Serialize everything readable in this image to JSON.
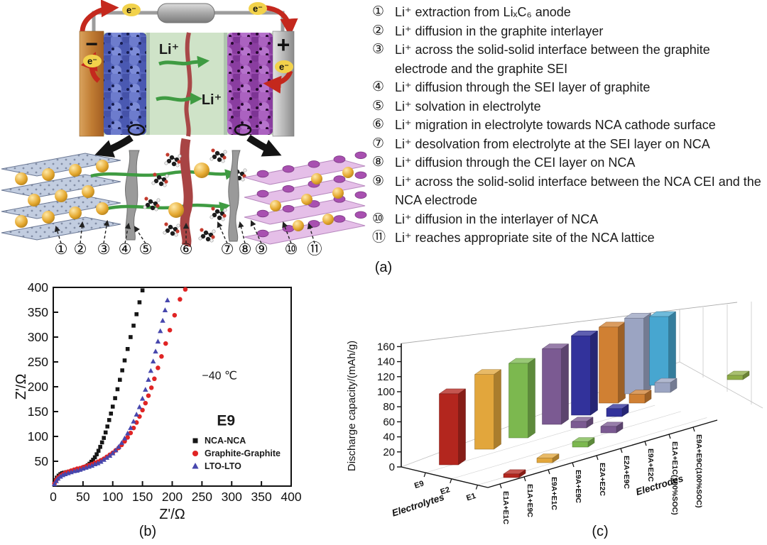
{
  "panel_a": {
    "caption": "(a)",
    "labels": {
      "electron": "e⁻",
      "minus": "−",
      "plus": "+",
      "li_ion_upper": "Li⁺",
      "li_ion_lower": "Li⁺"
    },
    "step_markers": [
      "①",
      "②",
      "③",
      "④",
      "⑤",
      "⑥",
      "⑦",
      "⑧",
      "⑨",
      "⑩",
      "⑪"
    ],
    "steps": [
      {
        "marker": "①",
        "text": "Li⁺ extraction from LiₓC₆ anode"
      },
      {
        "marker": "②",
        "text": "Li⁺ diffusion in the graphite interlayer"
      },
      {
        "marker": "③",
        "text": "Li⁺ across the solid-solid interface between the graphite electrode and the graphite SEI"
      },
      {
        "marker": "④",
        "text": "Li⁺ diffusion through the SEI layer of graphite"
      },
      {
        "marker": "⑤",
        "text": "Li⁺ solvation in electrolyte"
      },
      {
        "marker": "⑥",
        "text": "Li⁺ migration in electrolyte towards NCA cathode surface"
      },
      {
        "marker": "⑦",
        "text": "Li⁺ desolvation from electrolyte at the SEI layer on NCA"
      },
      {
        "marker": "⑧",
        "text": "Li⁺ diffusion through the CEI layer on NCA"
      },
      {
        "marker": "⑨",
        "text": "Li⁺ across the solid-solid interface between the NCA CEI and the NCA electrode"
      },
      {
        "marker": "⑩",
        "text": "Li⁺ diffusion in the interlayer of NCA"
      },
      {
        "marker": "⑪",
        "text": "Li⁺ reaches appropriate site of the NCA lattice"
      }
    ]
  },
  "panel_b": {
    "caption": "(b)"
  },
  "panel_c": {
    "caption": "(c)"
  },
  "chart_data": [
    {
      "id": "panel_b",
      "type": "scatter",
      "xlabel": "Z'/Ω",
      "ylabel": "Z'/Ω",
      "xlim": [
        0,
        400
      ],
      "ylim": [
        0,
        400
      ],
      "xticks": [
        0,
        50,
        100,
        150,
        200,
        250,
        300,
        350,
        400
      ],
      "yticks": [
        50,
        100,
        150,
        200,
        250,
        300,
        350,
        400
      ],
      "grid": false,
      "legend_position": "inside-bottom-right",
      "annotations": [
        {
          "text": "−40 ℃",
          "x": 250,
          "y": 215
        },
        {
          "text": "E9",
          "x": 275,
          "y": 122
        }
      ],
      "series": [
        {
          "name": "NCA-NCA",
          "marker": "square",
          "color": "#161616",
          "points": [
            [
              2,
              6
            ],
            [
              4,
              12
            ],
            [
              6,
              17
            ],
            [
              9,
              21
            ],
            [
              12,
              24
            ],
            [
              15,
              26
            ],
            [
              18,
              27
            ],
            [
              22,
              28
            ],
            [
              26,
              29
            ],
            [
              30,
              30
            ],
            [
              34,
              31
            ],
            [
              38,
              32
            ],
            [
              42,
              33
            ],
            [
              46,
              35
            ],
            [
              50,
              37
            ],
            [
              54,
              39
            ],
            [
              58,
              42
            ],
            [
              61,
              45
            ],
            [
              64,
              49
            ],
            [
              67,
              53
            ],
            [
              70,
              58
            ],
            [
              73,
              64
            ],
            [
              76,
              71
            ],
            [
              79,
              79
            ],
            [
              82,
              88
            ],
            [
              85,
              97
            ],
            [
              88,
              108
            ],
            [
              91,
              120
            ],
            [
              94,
              133
            ],
            [
              97,
              146
            ],
            [
              100,
              160
            ],
            [
              104,
              177
            ],
            [
              108,
              195
            ],
            [
              112,
              214
            ],
            [
              116,
              233
            ],
            [
              120,
              253
            ],
            [
              125,
              276
            ],
            [
              130,
              300
            ],
            [
              135,
              323
            ],
            [
              140,
              346
            ],
            [
              145,
              370
            ],
            [
              150,
              394
            ]
          ]
        },
        {
          "name": "Graphite-Graphite",
          "marker": "circle",
          "color": "#e02424",
          "points": [
            [
              2,
              5
            ],
            [
              5,
              12
            ],
            [
              8,
              17
            ],
            [
              12,
              21
            ],
            [
              16,
              24
            ],
            [
              20,
              27
            ],
            [
              25,
              29
            ],
            [
              30,
              31
            ],
            [
              35,
              33
            ],
            [
              40,
              35
            ],
            [
              45,
              36
            ],
            [
              50,
              38
            ],
            [
              55,
              40
            ],
            [
              60,
              42
            ],
            [
              65,
              44
            ],
            [
              70,
              47
            ],
            [
              75,
              49
            ],
            [
              80,
              52
            ],
            [
              85,
              55
            ],
            [
              90,
              59
            ],
            [
              95,
              63
            ],
            [
              100,
              67
            ],
            [
              105,
              72
            ],
            [
              110,
              77
            ],
            [
              115,
              83
            ],
            [
              120,
              90
            ],
            [
              125,
              98
            ],
            [
              130,
              107
            ],
            [
              135,
              117
            ],
            [
              140,
              128
            ],
            [
              145,
              140
            ],
            [
              150,
              153
            ],
            [
              155,
              167
            ],
            [
              160,
              182
            ],
            [
              165,
              198
            ],
            [
              170,
              216
            ],
            [
              176,
              238
            ],
            [
              182,
              261
            ],
            [
              189,
              287
            ],
            [
              196,
              314
            ],
            [
              204,
              344
            ],
            [
              213,
              376
            ],
            [
              222,
              396
            ]
          ]
        },
        {
          "name": "LTO-LTO",
          "marker": "triangle",
          "color": "#4747ad",
          "points": [
            [
              2,
              4
            ],
            [
              5,
              10
            ],
            [
              8,
              15
            ],
            [
              12,
              19
            ],
            [
              16,
              22
            ],
            [
              20,
              24
            ],
            [
              25,
              26
            ],
            [
              30,
              28
            ],
            [
              35,
              30
            ],
            [
              40,
              31
            ],
            [
              45,
              33
            ],
            [
              50,
              35
            ],
            [
              55,
              37
            ],
            [
              60,
              39
            ],
            [
              65,
              41
            ],
            [
              70,
              44
            ],
            [
              75,
              46
            ],
            [
              80,
              49
            ],
            [
              85,
              53
            ],
            [
              90,
              57
            ],
            [
              95,
              61
            ],
            [
              100,
              66
            ],
            [
              105,
              72
            ],
            [
              110,
              79
            ],
            [
              115,
              87
            ],
            [
              120,
              96
            ],
            [
              125,
              106
            ],
            [
              130,
              117
            ],
            [
              135,
              130
            ],
            [
              140,
              144
            ],
            [
              145,
              159
            ],
            [
              150,
              176
            ],
            [
              155,
              194
            ],
            [
              160,
              214
            ],
            [
              164,
              232
            ],
            [
              168,
              251
            ],
            [
              172,
              271
            ],
            [
              176,
              291
            ],
            [
              180,
              312
            ],
            [
              184,
              333
            ],
            [
              188,
              354
            ],
            [
              192,
              374
            ]
          ]
        }
      ]
    },
    {
      "id": "panel_c",
      "type": "bar3d",
      "ylabel": "Discharge capacity/(mAh/g)",
      "ylim": [
        0,
        160
      ],
      "yticks": [
        0,
        20,
        40,
        60,
        80,
        100,
        120,
        140,
        160
      ],
      "xlabel": "Electrodes",
      "depth_label": "Electrolytes",
      "electrolytes": [
        "E9",
        "E2",
        "E1"
      ],
      "electrodes": [
        "E1A+E1C",
        "E1A+E9C",
        "E9A+E1C",
        "E9A+E9C",
        "E2A+E2C",
        "E2A+E9C",
        "E9A+E2C",
        "E1A+E1C(100%SOC)",
        "E9A+E9C(100%SOC)"
      ],
      "bars_back": [
        {
          "electrode": "E1A+E1C",
          "value": 115,
          "color": "#b3261e"
        },
        {
          "electrode": "E1A+E9C",
          "value": 130,
          "color": "#e2a63c"
        },
        {
          "electrode": "E9A+E1C",
          "value": 140,
          "color": "#7cb84f"
        },
        {
          "electrode": "E9A+E9C",
          "value": 152,
          "color": "#7b5a92"
        },
        {
          "electrode": "E2A+E2C",
          "value": 162,
          "color": "#32329b"
        },
        {
          "electrode": "E2A+E9C",
          "value": 170,
          "color": "#d08033"
        },
        {
          "electrode": "E9A+E2C",
          "value": 172,
          "color": "#9ba4c2"
        },
        {
          "electrode": "E1A+E1C(100%SOC)",
          "value": 170,
          "color": "#47a6d0"
        }
      ],
      "bars_front": [
        {
          "electrode": "E1A+E1C",
          "value": 6,
          "color": "#b3261e"
        },
        {
          "electrode": "E1A+E9C",
          "value": 8,
          "color": "#e2a63c"
        },
        {
          "electrode": "E9A+E1C",
          "value": 10,
          "color": "#7cb84f"
        },
        {
          "electrode": "E9A+E9C",
          "value": 13,
          "color": "#7b5a92"
        },
        {
          "electrode": "E2A+E2C",
          "value": 13,
          "color": "#7b5a92"
        },
        {
          "electrode": "E2A+E9C",
          "value": 17,
          "color": "#32329b"
        },
        {
          "electrode": "E9A+E2C",
          "value": 20,
          "color": "#d08033"
        },
        {
          "electrode": "E1A+E1C(100%SOC)",
          "value": 24,
          "color": "#9ba4c2"
        },
        {
          "electrode": "E9A+E9C(100%SOC)",
          "value": 12,
          "color": "#8fae48"
        }
      ]
    }
  ]
}
